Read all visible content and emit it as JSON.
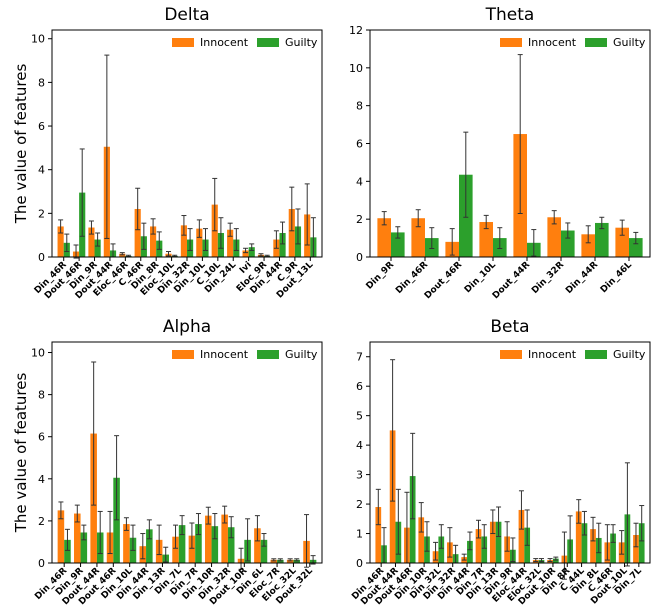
{
  "chart_data": [
    {
      "type": "bar",
      "title": "Delta",
      "ylabel": "The value of features",
      "ylim": [
        0,
        10.4
      ],
      "yticks": [
        0,
        2,
        4,
        6,
        8,
        10
      ],
      "legend": "upper right",
      "categories": [
        "Din_46R",
        "Dout_46R",
        "Din_9R",
        "Dout_44R",
        "Eloc_46R",
        "C_46R",
        "Din_8R",
        "Eloc_10L",
        "Din_32R",
        "Din_10L",
        "C_10L",
        "Din_24L",
        "Ivi",
        "Eloc_9R",
        "Din_44R",
        "C_9R",
        "Dout_13L"
      ],
      "series": [
        {
          "name": "Innocent",
          "color": "#ff7f0e",
          "values": [
            1.4,
            0.25,
            1.35,
            5.05,
            0.15,
            2.2,
            1.4,
            0.15,
            1.45,
            1.3,
            2.4,
            1.25,
            0.3,
            0.1,
            0.8,
            2.2,
            1.95
          ],
          "errors": [
            0.3,
            0.3,
            0.3,
            4.2,
            0.05,
            0.95,
            0.35,
            0.1,
            0.45,
            0.4,
            1.2,
            0.3,
            0.1,
            0.05,
            0.4,
            1.0,
            1.4
          ]
        },
        {
          "name": "Guilty",
          "color": "#2ca02c",
          "values": [
            0.65,
            2.95,
            0.8,
            0.3,
            0.05,
            0.95,
            0.75,
            0.05,
            0.8,
            0.8,
            1.1,
            0.8,
            0.45,
            0.05,
            1.1,
            1.4,
            0.9
          ],
          "errors": [
            0.4,
            2.0,
            0.3,
            0.3,
            0.03,
            0.6,
            0.4,
            0.03,
            0.5,
            0.5,
            0.7,
            0.5,
            0.15,
            0.03,
            0.5,
            0.8,
            0.9
          ]
        }
      ]
    },
    {
      "type": "bar",
      "title": "Theta",
      "ylim": [
        0,
        12
      ],
      "yticks": [
        0,
        2,
        4,
        6,
        8,
        10,
        12
      ],
      "legend": "upper right",
      "categories": [
        "Din_9R",
        "Din_46R",
        "Dout_46R",
        "Din_10L",
        "Dout_44R",
        "Din_32R",
        "Din_44R",
        "Din_46L"
      ],
      "series": [
        {
          "name": "Innocent",
          "color": "#ff7f0e",
          "values": [
            2.05,
            2.05,
            0.8,
            1.85,
            6.5,
            2.1,
            1.2,
            1.55
          ],
          "errors": [
            0.35,
            0.45,
            0.7,
            0.35,
            4.2,
            0.35,
            0.45,
            0.4
          ]
        },
        {
          "name": "Guilty",
          "color": "#2ca02c",
          "values": [
            1.3,
            1.0,
            4.35,
            1.0,
            0.75,
            1.4,
            1.8,
            1.0
          ],
          "errors": [
            0.3,
            0.55,
            2.25,
            0.55,
            0.7,
            0.4,
            0.3,
            0.3
          ]
        }
      ]
    },
    {
      "type": "bar",
      "title": "Alpha",
      "ylabel": "The value of features",
      "ylim": [
        0,
        10.5
      ],
      "yticks": [
        0,
        2,
        4,
        6,
        8,
        10
      ],
      "legend": "upper right",
      "categories": [
        "Din_46R",
        "Din_9R",
        "Dout_44R",
        "Dout_46R",
        "Din_10L",
        "Din_44R",
        "Din_13R",
        "Din_7L",
        "Din_7R",
        "Din_10R",
        "Din_32R",
        "Dout_10R",
        "Din_6L",
        "Eloc_7R",
        "Eloc_32L",
        "Dout_32L"
      ],
      "series": [
        {
          "name": "Innocent",
          "color": "#ff7f0e",
          "values": [
            2.5,
            2.35,
            6.15,
            1.45,
            1.85,
            0.8,
            1.1,
            1.25,
            1.3,
            2.25,
            2.3,
            0.2,
            1.65,
            0.15,
            0.15,
            1.05
          ],
          "errors": [
            0.4,
            0.4,
            3.4,
            1.0,
            0.3,
            0.6,
            0.7,
            0.55,
            0.6,
            0.4,
            0.4,
            0.5,
            0.6,
            0.05,
            0.05,
            1.25
          ]
        },
        {
          "name": "Guilty",
          "color": "#2ca02c",
          "values": [
            1.1,
            1.45,
            1.45,
            4.05,
            1.2,
            1.6,
            0.4,
            1.8,
            1.85,
            1.75,
            1.7,
            1.1,
            1.1,
            0.15,
            0.15,
            0.15
          ],
          "errors": [
            0.5,
            0.35,
            1.0,
            2.0,
            0.6,
            0.45,
            0.35,
            0.45,
            0.5,
            0.6,
            0.5,
            1.0,
            0.3,
            0.05,
            0.05,
            0.2
          ]
        }
      ]
    },
    {
      "type": "bar",
      "title": "Beta",
      "ylim": [
        0,
        7.5
      ],
      "yticks": [
        0,
        1,
        2,
        3,
        4,
        5,
        6,
        7
      ],
      "legend": "upper right",
      "categories": [
        "Din_46R",
        "Dout_44R",
        "Dout_46R",
        "Din_10R",
        "Din_32L",
        "Din_32R",
        "Din_44R",
        "Din_7R",
        "Din_13R",
        "Din_9R",
        "Eloc_44R",
        "Eloc_32L",
        "Dout_10R",
        "Din_8R",
        "C_44L",
        "Din_8L",
        "C_46R",
        "Dout_10L",
        "Din_7L"
      ],
      "series": [
        {
          "name": "Innocent",
          "color": "#ff7f0e",
          "values": [
            1.9,
            4.5,
            1.2,
            1.55,
            0.4,
            0.7,
            0.2,
            1.15,
            1.4,
            0.9,
            1.8,
            0.1,
            0.1,
            0.25,
            1.75,
            1.15,
            0.7,
            0.7,
            0.95
          ],
          "errors": [
            0.6,
            2.4,
            1.2,
            0.5,
            0.3,
            0.5,
            0.1,
            0.3,
            0.4,
            0.5,
            0.65,
            0.05,
            0.05,
            0.8,
            0.4,
            0.4,
            0.6,
            0.4,
            0.4
          ]
        },
        {
          "name": "Guilty",
          "color": "#2ca02c",
          "values": [
            0.6,
            1.4,
            2.95,
            0.9,
            0.9,
            0.3,
            0.75,
            0.9,
            1.4,
            0.45,
            1.2,
            0.1,
            0.15,
            0.8,
            1.35,
            0.85,
            1.0,
            1.65,
            1.35
          ],
          "errors": [
            0.6,
            1.1,
            1.45,
            0.5,
            0.4,
            0.3,
            0.3,
            0.4,
            0.5,
            0.4,
            0.6,
            0.05,
            0.05,
            0.8,
            0.4,
            0.5,
            0.3,
            1.75,
            0.6
          ]
        }
      ]
    }
  ]
}
